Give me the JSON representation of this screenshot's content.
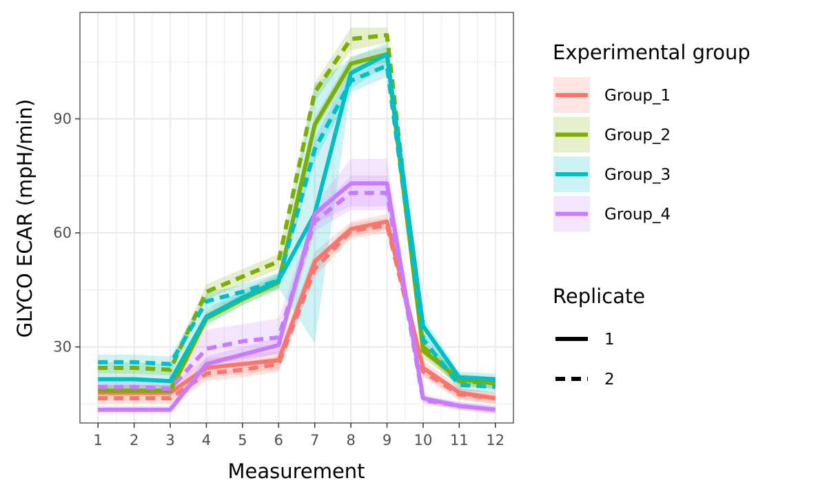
{
  "chart_data": {
    "type": "line",
    "xlabel": "Measurement",
    "ylabel": "GLYCO ECAR (mpH/min)",
    "x": [
      1,
      2,
      3,
      4,
      5,
      6,
      7,
      8,
      9,
      10,
      11,
      12
    ],
    "x_tick_labels": [
      "1",
      "2",
      "3",
      "4",
      "5",
      "6",
      "7",
      "8",
      "9",
      "10",
      "11",
      "12"
    ],
    "xlim": [
      0.5,
      12.5
    ],
    "ylim": [
      10,
      118
    ],
    "y_ticks": [
      30,
      60,
      90
    ],
    "y_tick_labels": [
      "30",
      "60",
      "90"
    ],
    "grid": true,
    "confidence_bands": true,
    "legend_position": "right",
    "legends": [
      {
        "title": "Experimental group",
        "entries": [
          {
            "label": "Group_1",
            "color": "#F8766D"
          },
          {
            "label": "Group_2",
            "color": "#7CAE00"
          },
          {
            "label": "Group_3",
            "color": "#00BFC4"
          },
          {
            "label": "Group_4",
            "color": "#C77CFF"
          }
        ]
      },
      {
        "title": "Replicate",
        "entries": [
          {
            "label": "1",
            "linetype": "solid"
          },
          {
            "label": "2",
            "linetype": "dashed"
          }
        ]
      }
    ],
    "series": [
      {
        "group": "Group_1",
        "replicate": "1",
        "color": "#F8766D",
        "values": [
          18,
          18,
          18,
          24.5,
          25.5,
          26.5,
          52.5,
          61,
          63,
          24.5,
          18,
          16.5
        ],
        "lower": [
          16,
          16,
          16,
          22,
          23,
          24,
          50,
          59,
          61,
          22.5,
          16.5,
          15
        ],
        "upper": [
          20,
          20,
          20,
          27,
          28,
          29,
          55,
          63,
          65,
          26.5,
          19.5,
          18
        ]
      },
      {
        "group": "Group_1",
        "replicate": "2",
        "color": "#F8766D",
        "values": [
          16.5,
          16.5,
          16.5,
          23,
          24,
          25.5,
          50.5,
          60.5,
          62,
          23.5,
          17.5,
          16.5
        ],
        "lower": [
          15,
          15,
          15,
          21,
          22,
          23.5,
          48.5,
          58.5,
          60,
          22,
          16,
          15
        ],
        "upper": [
          18,
          18,
          18,
          25,
          26,
          27.5,
          52.5,
          62.5,
          64,
          25,
          19,
          18
        ]
      },
      {
        "group": "Group_2",
        "replicate": "1",
        "color": "#7CAE00",
        "values": [
          18.5,
          18.5,
          18.5,
          37.5,
          42.5,
          47,
          88.5,
          104.5,
          107,
          29,
          21.5,
          20.5
        ],
        "lower": [
          17,
          17,
          17,
          35.5,
          41,
          45,
          86.5,
          102.5,
          105,
          27,
          20,
          19
        ],
        "upper": [
          20,
          20,
          20,
          39.5,
          44,
          49,
          90.5,
          106.5,
          109,
          31,
          23,
          22
        ]
      },
      {
        "group": "Group_2",
        "replicate": "2",
        "color": "#7CAE00",
        "values": [
          24.5,
          24.5,
          24,
          44.5,
          48.5,
          52.5,
          97,
          111,
          112,
          30,
          21,
          20.5
        ],
        "lower": [
          23,
          23,
          22.5,
          42.5,
          46.5,
          50.5,
          94.5,
          108,
          110,
          28,
          19.5,
          19
        ],
        "upper": [
          26,
          26,
          25.5,
          46.5,
          50.5,
          54.5,
          99.5,
          114,
          114,
          32,
          22.5,
          22
        ]
      },
      {
        "group": "Group_3",
        "replicate": "1",
        "color": "#00BFC4",
        "values": [
          21.5,
          21.5,
          21,
          38,
          43,
          47.5,
          65,
          102,
          107,
          35.5,
          22,
          21.5
        ],
        "lower": [
          19,
          19,
          18.5,
          36,
          41,
          45.5,
          31,
          98,
          104,
          33,
          20.5,
          20
        ],
        "upper": [
          24,
          24,
          23.5,
          40,
          45,
          49.5,
          99,
          106,
          110,
          38,
          23.5,
          23
        ]
      },
      {
        "group": "Group_3",
        "replicate": "2",
        "color": "#00BFC4",
        "values": [
          26,
          26,
          25.5,
          42,
          44.5,
          47.5,
          82,
          100,
          104,
          32,
          20,
          19.5
        ],
        "lower": [
          24,
          24,
          23.5,
          40,
          42.5,
          45.5,
          79,
          97,
          101,
          30,
          18.5,
          18
        ],
        "upper": [
          28,
          28,
          27.5,
          44,
          46.5,
          49.5,
          85,
          103,
          107,
          34,
          21.5,
          21
        ]
      },
      {
        "group": "Group_4",
        "replicate": "1",
        "color": "#C77CFF",
        "values": [
          13.5,
          13.5,
          13.5,
          25.5,
          28,
          30.5,
          65,
          73,
          73,
          16.5,
          14.5,
          13.5
        ],
        "lower": [
          12.5,
          12.5,
          12.5,
          23.5,
          26,
          28.5,
          62.5,
          67,
          67,
          15.5,
          13.5,
          12.5
        ],
        "upper": [
          14.5,
          14.5,
          14.5,
          27.5,
          30,
          32.5,
          67.5,
          79.5,
          79.5,
          17.5,
          15.5,
          14.5
        ]
      },
      {
        "group": "Group_4",
        "replicate": "2",
        "color": "#C77CFF",
        "values": [
          19.5,
          19.5,
          19,
          29.5,
          31.5,
          32.5,
          63,
          70.5,
          70.5,
          16,
          14.5,
          13.5
        ],
        "lower": [
          18,
          18,
          17.5,
          25,
          27,
          28,
          60.5,
          66,
          66,
          15,
          13.5,
          12.5
        ],
        "upper": [
          21,
          21,
          20.5,
          34.5,
          36,
          37.5,
          65.5,
          75,
          75,
          17,
          15.5,
          14.5
        ]
      }
    ]
  }
}
